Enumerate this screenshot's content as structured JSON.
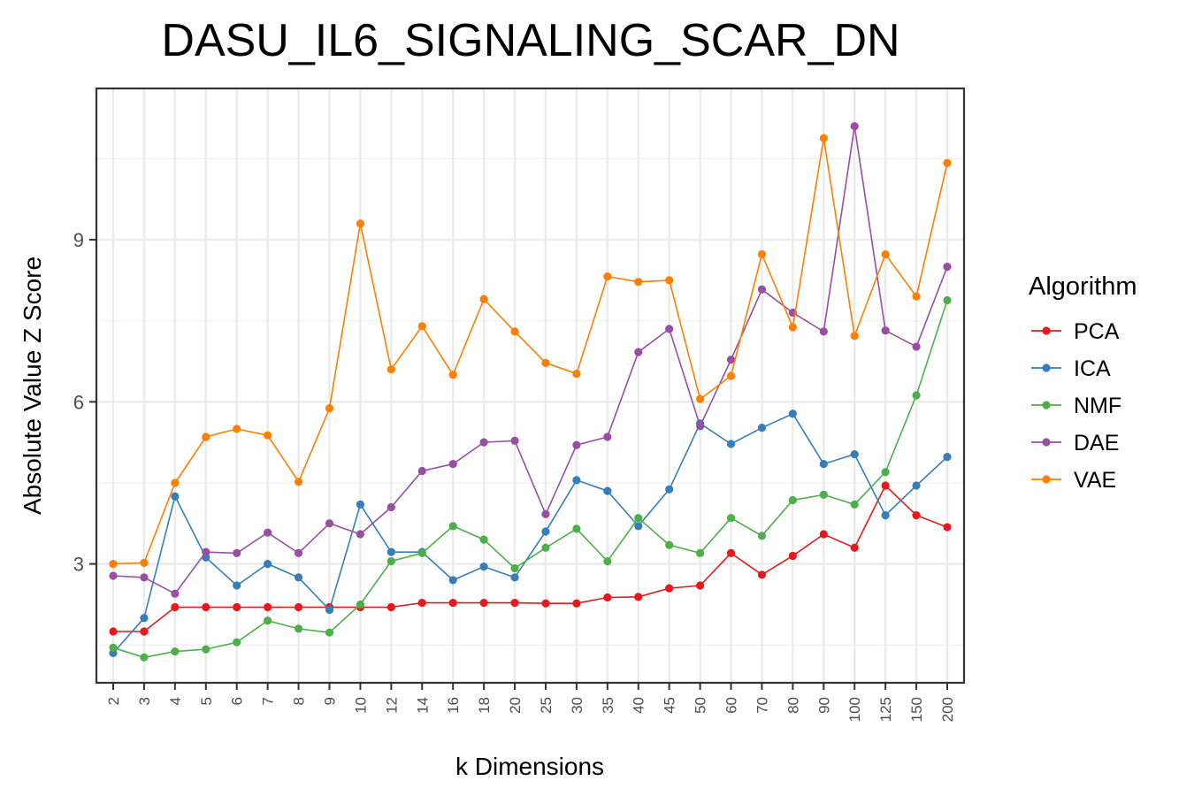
{
  "chart_data": {
    "type": "line",
    "title": "DASU_IL6_SIGNALING_SCAR_DN",
    "xlabel": "k Dimensions",
    "ylabel": "Absolute Value Z Score",
    "categories": [
      "2",
      "3",
      "4",
      "5",
      "6",
      "7",
      "8",
      "9",
      "10",
      "12",
      "14",
      "16",
      "18",
      "20",
      "25",
      "30",
      "35",
      "40",
      "45",
      "50",
      "60",
      "70",
      "80",
      "90",
      "100",
      "125",
      "150",
      "200"
    ],
    "y_ticks": [
      "3",
      "6",
      "9"
    ],
    "ylim": [
      0.8,
      11.8
    ],
    "grid": true,
    "legend": {
      "title": "Algorithm",
      "position": "right"
    },
    "series": [
      {
        "name": "PCA",
        "color": "#e41a1c",
        "values": [
          1.75,
          1.75,
          2.2,
          2.2,
          2.2,
          2.2,
          2.2,
          2.2,
          2.2,
          2.2,
          2.28,
          2.28,
          2.28,
          2.28,
          2.27,
          2.27,
          2.38,
          2.39,
          2.55,
          2.6,
          3.2,
          2.8,
          3.15,
          3.55,
          3.3,
          4.45,
          3.9,
          3.68
        ]
      },
      {
        "name": "ICA",
        "color": "#377eb8",
        "values": [
          1.35,
          2.0,
          4.25,
          3.12,
          2.6,
          3.0,
          2.75,
          2.15,
          4.1,
          3.22,
          3.22,
          2.7,
          2.95,
          2.75,
          3.6,
          4.55,
          4.35,
          3.7,
          4.38,
          5.6,
          5.22,
          5.52,
          5.78,
          4.85,
          5.03,
          3.9,
          4.45,
          4.98
        ]
      },
      {
        "name": "NMF",
        "color": "#4daf4a",
        "values": [
          1.45,
          1.27,
          1.38,
          1.42,
          1.55,
          1.95,
          1.8,
          1.73,
          2.25,
          3.05,
          3.2,
          3.7,
          3.45,
          2.92,
          3.3,
          3.65,
          3.05,
          3.85,
          3.35,
          3.2,
          3.85,
          3.52,
          4.18,
          4.28,
          4.1,
          4.7,
          6.12,
          7.88
        ]
      },
      {
        "name": "DAE",
        "color": "#984ea3",
        "values": [
          2.78,
          2.75,
          2.45,
          3.22,
          3.2,
          3.58,
          3.2,
          3.75,
          3.55,
          4.05,
          4.72,
          4.85,
          5.25,
          5.28,
          3.92,
          5.2,
          5.35,
          6.92,
          7.35,
          5.55,
          6.78,
          8.08,
          7.65,
          7.3,
          11.1,
          7.32,
          7.02,
          8.5
        ]
      },
      {
        "name": "VAE",
        "color": "#ff7f00",
        "values": [
          3.0,
          3.02,
          4.5,
          5.35,
          5.5,
          5.38,
          4.52,
          5.88,
          9.3,
          6.6,
          7.4,
          6.5,
          7.9,
          7.3,
          6.72,
          6.52,
          8.32,
          8.22,
          8.25,
          6.05,
          6.48,
          8.73,
          7.38,
          10.88,
          7.22,
          8.73,
          7.95,
          10.42
        ]
      }
    ]
  }
}
